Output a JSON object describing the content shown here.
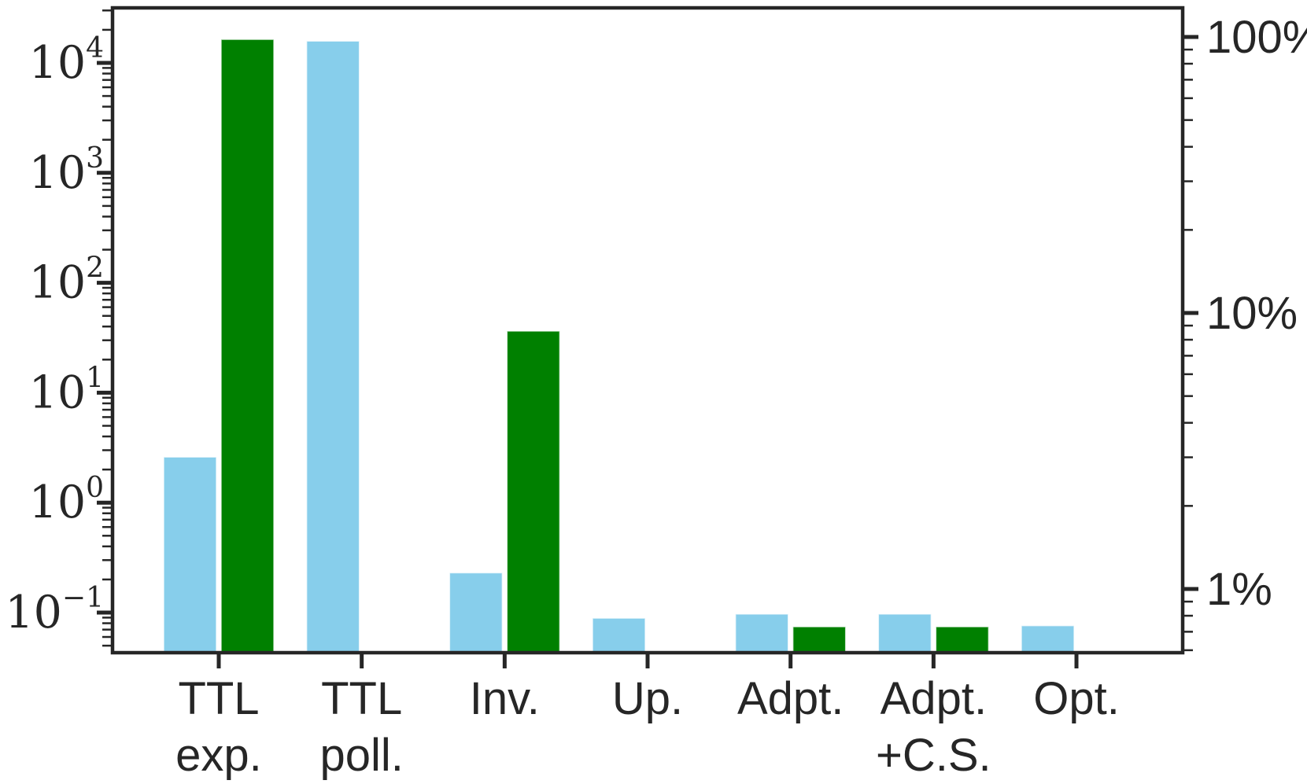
{
  "figure": {
    "background": "#ffffff",
    "axis_color": "#262626",
    "title": ""
  },
  "chart_data": {
    "type": "bar",
    "title": "",
    "xlabel": "",
    "ylabel_left": "",
    "ylabel_right": "",
    "grid": false,
    "legend": "none",
    "categories": [
      "TTL exp.",
      "TTL poll.",
      "Inv.",
      "Up.",
      "Adpt.",
      "Adpt. +C.S.",
      "Opt."
    ],
    "category_label_lines": [
      [
        "TTL",
        "exp."
      ],
      [
        "TTL",
        "poll."
      ],
      [
        "Inv."
      ],
      [
        "Up."
      ],
      [
        "Adpt."
      ],
      [
        "Adpt.",
        "+C.S."
      ],
      [
        "Opt."
      ]
    ],
    "series": [
      {
        "name": "skyblue-series",
        "color": "#87CEEB",
        "axis": "left",
        "values": [
          2.6,
          15800,
          0.23,
          0.089,
          0.097,
          0.097,
          0.076
        ]
      },
      {
        "name": "green-series",
        "color": "#008000",
        "axis": "right",
        "values_percent": [
          98,
          null,
          8.6,
          null,
          0.73,
          0.73,
          null
        ]
      }
    ],
    "left_axis": {
      "scale": "log",
      "tick_labels": [
        "10⁴",
        "10³",
        "10²",
        "10¹",
        "10⁰",
        "10⁻¹"
      ],
      "tick_exponents": [
        4,
        3,
        2,
        1,
        0,
        -1
      ],
      "range_top": 31623,
      "range_bottom": 0.042,
      "minor_ticks": true
    },
    "right_axis": {
      "scale": "log",
      "tick_labels": [
        "100%",
        "10%",
        "1%"
      ],
      "tick_percents": [
        100,
        10,
        1
      ],
      "range_top_pct": 130,
      "range_bottom_pct": 0.59,
      "minor_ticks": true
    }
  }
}
